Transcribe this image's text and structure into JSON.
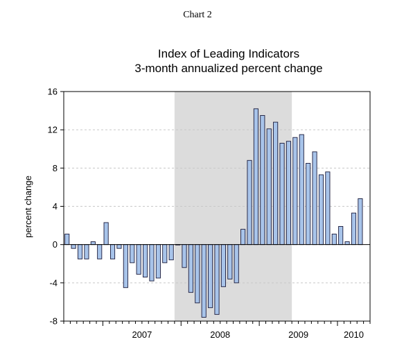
{
  "page_label": "Chart 2",
  "chart_data": {
    "type": "bar",
    "title": "Index of Leading Indicators",
    "subtitle": "3-month annualized percent change",
    "xlabel": "",
    "ylabel": "percent change",
    "ylim": [
      -8,
      16
    ],
    "yticks": [
      -8,
      -4,
      0,
      4,
      8,
      12,
      16
    ],
    "grid": "horizontal dashed",
    "legend": "none",
    "x_start": "2006-07",
    "x_end": "2010-06",
    "year_labels": [
      "2007",
      "2008",
      "2009",
      "2010"
    ],
    "shaded_region": {
      "start": "2007-12",
      "end": "2009-06"
    },
    "colors": {
      "bar": "#a8c4ea",
      "bar_edge": "#1a1a3a",
      "shade": "#dcdcdc",
      "grid": "#c8c8c8"
    },
    "categories": [
      "2006-08",
      "2006-09",
      "2006-10",
      "2006-11",
      "2006-12",
      "2007-01",
      "2007-02",
      "2007-03",
      "2007-04",
      "2007-05",
      "2007-06",
      "2007-07",
      "2007-08",
      "2007-09",
      "2007-10",
      "2007-11",
      "2007-12",
      "2008-01",
      "2008-02",
      "2008-03",
      "2008-04",
      "2008-05",
      "2008-06",
      "2008-07",
      "2008-08",
      "2008-09",
      "2008-10",
      "2008-11",
      "2008-12",
      "2009-01",
      "2009-02",
      "2009-03",
      "2009-04",
      "2009-05",
      "2009-06",
      "2009-07",
      "2009-08",
      "2009-09",
      "2009-10",
      "2009-11",
      "2009-12",
      "2010-01",
      "2010-02",
      "2010-03",
      "2010-04",
      "2010-05"
    ],
    "values": [
      1.1,
      -0.4,
      -1.5,
      -1.5,
      0.3,
      -1.5,
      2.3,
      -1.5,
      -0.4,
      -4.5,
      -1.9,
      -3.1,
      -3.4,
      -3.8,
      -3.5,
      -1.9,
      -1.6,
      0.0,
      -2.4,
      -5.0,
      -6.1,
      -7.6,
      -6.6,
      -7.3,
      -4.4,
      -3.6,
      -4.0,
      1.6,
      8.8,
      14.2,
      13.5,
      12.1,
      12.8,
      10.6,
      10.8,
      11.2,
      11.5,
      8.5,
      9.7,
      7.3,
      7.6,
      1.1,
      1.9,
      0.3,
      3.3,
      4.8
    ]
  }
}
